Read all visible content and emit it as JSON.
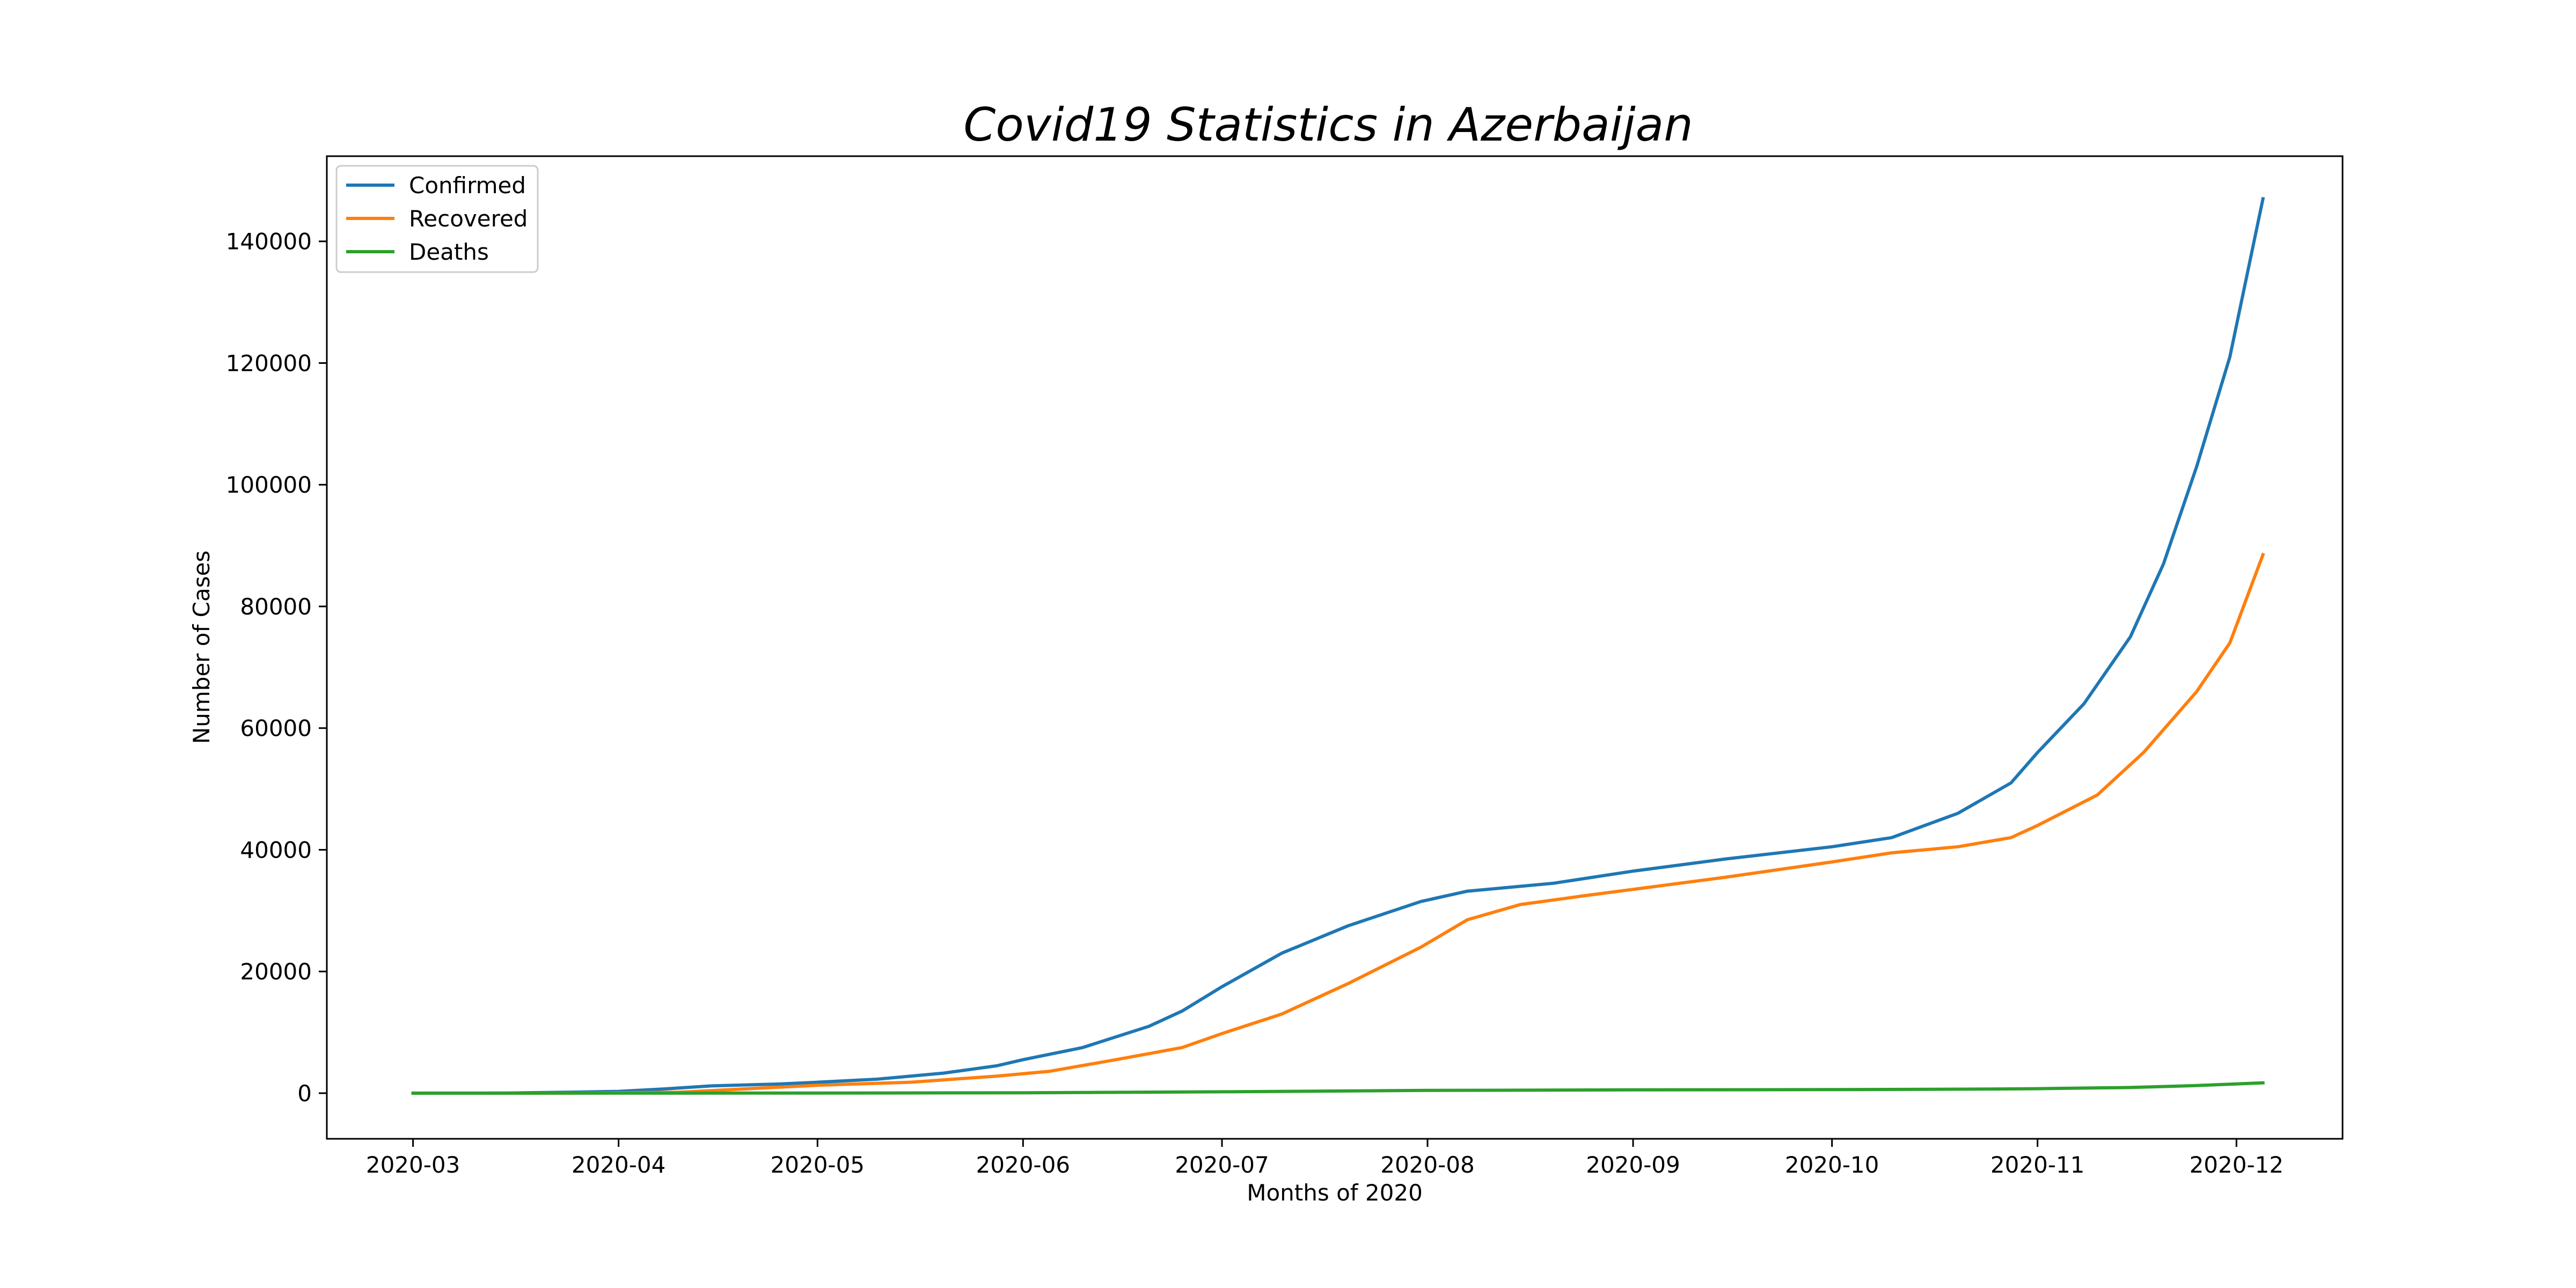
{
  "chart_data": {
    "type": "line",
    "title": "Covid19 Statistics in Azerbaijan",
    "xlabel": "Months of 2020",
    "ylabel": "Number of Cases",
    "xlim": [
      "2020-02-17",
      "2020-12-17"
    ],
    "ylim": [
      -7500,
      154000
    ],
    "x_ticks": [
      "2020-03",
      "2020-04",
      "2020-05",
      "2020-06",
      "2020-07",
      "2020-08",
      "2020-09",
      "2020-10",
      "2020-11",
      "2020-12"
    ],
    "y_ticks": [
      "0",
      "20000",
      "40000",
      "60000",
      "80000",
      "100000",
      "120000",
      "140000"
    ],
    "legend_position": "top-left",
    "grid": false,
    "series": [
      {
        "name": "Confirmed",
        "color": "#1f77b4",
        "points": [
          [
            "2020-03-01",
            3
          ],
          [
            "2020-03-15",
            15
          ],
          [
            "2020-03-25",
            165
          ],
          [
            "2020-04-01",
            300
          ],
          [
            "2020-04-08",
            700
          ],
          [
            "2020-04-15",
            1200
          ],
          [
            "2020-04-25",
            1500
          ],
          [
            "2020-05-01",
            1800
          ],
          [
            "2020-05-10",
            2300
          ],
          [
            "2020-05-20",
            3300
          ],
          [
            "2020-05-28",
            4500
          ],
          [
            "2020-06-01",
            5500
          ],
          [
            "2020-06-10",
            7500
          ],
          [
            "2020-06-20",
            11000
          ],
          [
            "2020-06-25",
            13500
          ],
          [
            "2020-07-01",
            17500
          ],
          [
            "2020-07-10",
            23000
          ],
          [
            "2020-07-20",
            27500
          ],
          [
            "2020-07-31",
            31500
          ],
          [
            "2020-08-07",
            33200
          ],
          [
            "2020-08-20",
            34500
          ],
          [
            "2020-09-01",
            36500
          ],
          [
            "2020-09-15",
            38500
          ],
          [
            "2020-10-01",
            40500
          ],
          [
            "2020-10-10",
            42000
          ],
          [
            "2020-10-20",
            46000
          ],
          [
            "2020-10-28",
            51000
          ],
          [
            "2020-11-01",
            56000
          ],
          [
            "2020-11-08",
            64000
          ],
          [
            "2020-11-15",
            75000
          ],
          [
            "2020-11-20",
            87000
          ],
          [
            "2020-11-25",
            103000
          ],
          [
            "2020-11-30",
            121000
          ],
          [
            "2020-12-05",
            147000
          ]
        ]
      },
      {
        "name": "Recovered",
        "color": "#ff7f0e",
        "points": [
          [
            "2020-03-01",
            0
          ],
          [
            "2020-03-25",
            15
          ],
          [
            "2020-04-10",
            150
          ],
          [
            "2020-04-20",
            700
          ],
          [
            "2020-05-01",
            1300
          ],
          [
            "2020-05-15",
            1800
          ],
          [
            "2020-05-28",
            2800
          ],
          [
            "2020-06-05",
            3600
          ],
          [
            "2020-06-15",
            5500
          ],
          [
            "2020-06-25",
            7500
          ],
          [
            "2020-07-01",
            9800
          ],
          [
            "2020-07-10",
            13000
          ],
          [
            "2020-07-20",
            18000
          ],
          [
            "2020-07-31",
            24000
          ],
          [
            "2020-08-07",
            28500
          ],
          [
            "2020-08-15",
            31000
          ],
          [
            "2020-08-25",
            32500
          ],
          [
            "2020-09-01",
            33500
          ],
          [
            "2020-09-15",
            35500
          ],
          [
            "2020-10-01",
            38000
          ],
          [
            "2020-10-10",
            39500
          ],
          [
            "2020-10-20",
            40500
          ],
          [
            "2020-10-28",
            42000
          ],
          [
            "2020-11-01",
            44000
          ],
          [
            "2020-11-10",
            49000
          ],
          [
            "2020-11-17",
            56000
          ],
          [
            "2020-11-25",
            66000
          ],
          [
            "2020-11-30",
            74000
          ],
          [
            "2020-12-05",
            88500
          ]
        ]
      },
      {
        "name": "Deaths",
        "color": "#2ca02c",
        "points": [
          [
            "2020-03-01",
            0
          ],
          [
            "2020-04-01",
            5
          ],
          [
            "2020-05-01",
            25
          ],
          [
            "2020-06-01",
            60
          ],
          [
            "2020-07-01",
            230
          ],
          [
            "2020-08-01",
            460
          ],
          [
            "2020-09-01",
            540
          ],
          [
            "2020-10-01",
            590
          ],
          [
            "2020-10-25",
            680
          ],
          [
            "2020-11-01",
            740
          ],
          [
            "2020-11-15",
            930
          ],
          [
            "2020-11-25",
            1250
          ],
          [
            "2020-12-05",
            1700
          ]
        ]
      }
    ]
  }
}
